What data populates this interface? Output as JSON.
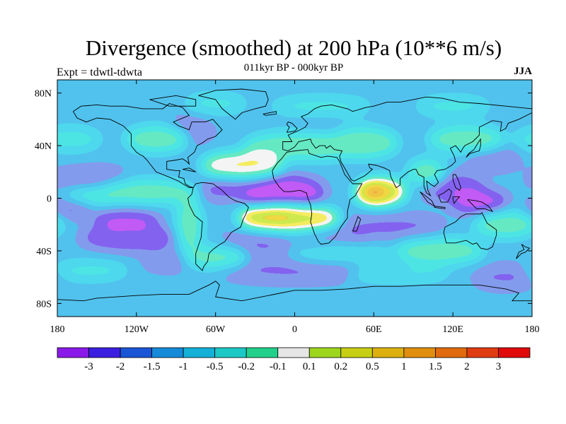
{
  "header": {
    "title": "Divergence (smoothed) at 200 hPa (10**6 m/s)",
    "subtitle": "011kyr BP - 000kyr BP",
    "experiment": "Expt = tdwtl-tdwta",
    "season": "JJA"
  },
  "map": {
    "projection": "cylindrical-equidistant",
    "lon_range": [
      -180,
      180
    ],
    "lat_range": [
      -90,
      90
    ],
    "lat_ticks": [
      {
        "value": 80,
        "label": "80N"
      },
      {
        "value": 40,
        "label": "40N"
      },
      {
        "value": 0,
        "label": "0"
      },
      {
        "value": -40,
        "label": "40S"
      },
      {
        "value": -80,
        "label": "80S"
      }
    ],
    "lon_ticks": [
      {
        "value": -180,
        "label": "180"
      },
      {
        "value": -120,
        "label": "120W"
      },
      {
        "value": -60,
        "label": "60W"
      },
      {
        "value": 0,
        "label": "0"
      },
      {
        "value": 60,
        "label": "60E"
      },
      {
        "value": 120,
        "label": "120E"
      },
      {
        "value": 180,
        "label": "180"
      }
    ]
  },
  "colorbar": {
    "colors": [
      "#8a1ae8",
      "#3b1fe0",
      "#1a55d6",
      "#168ad8",
      "#14b0d8",
      "#1cc8c6",
      "#22d08c",
      "#e6e6e6",
      "#9ed61e",
      "#c7cf14",
      "#dcb00e",
      "#e08e0e",
      "#e06a0e",
      "#e03c12",
      "#e00a0a"
    ],
    "labels": [
      "-3",
      "-2",
      "-1.5",
      "-1",
      "-0.5",
      "-0.2",
      "-0.1",
      "0.1",
      "0.2",
      "0.5",
      "1",
      "1.5",
      "2",
      "3"
    ]
  },
  "anomalies": [
    {
      "lon": -14,
      "lat": 2,
      "rx": 20,
      "ry": 8,
      "value": -3.5
    },
    {
      "lon": -10,
      "lat": 4,
      "rx": 33,
      "ry": 13,
      "value": -2.0
    },
    {
      "lon": -40,
      "lat": 18,
      "rx": 18,
      "ry": 9,
      "value": -0.8
    },
    {
      "lon": -50,
      "lat": 8,
      "rx": 14,
      "ry": 8,
      "value": -0.8
    },
    {
      "lon": -128,
      "lat": -16,
      "rx": 26,
      "ry": 6,
      "value": -1.5
    },
    {
      "lon": -170,
      "lat": -8,
      "rx": 16,
      "ry": 5,
      "value": -1.3
    },
    {
      "lon": -125,
      "lat": -30,
      "rx": 38,
      "ry": 10,
      "value": -0.9
    },
    {
      "lon": -90,
      "lat": 6,
      "rx": 34,
      "ry": 8,
      "value": -0.5
    },
    {
      "lon": -155,
      "lat": 15,
      "rx": 30,
      "ry": 8,
      "value": -0.3
    },
    {
      "lon": 120,
      "lat": 8,
      "rx": 25,
      "ry": 10,
      "value": -0.7
    },
    {
      "lon": 140,
      "lat": -3,
      "rx": 22,
      "ry": 8,
      "value": -2.2
    },
    {
      "lon": 112,
      "lat": 12,
      "rx": 8,
      "ry": 5,
      "value": -1.4
    },
    {
      "lon": 150,
      "lat": 30,
      "rx": 22,
      "ry": 8,
      "value": -0.4
    },
    {
      "lon": 75,
      "lat": -22,
      "rx": 40,
      "ry": 9,
      "value": -0.4
    },
    {
      "lon": 30,
      "lat": -33,
      "rx": 28,
      "ry": 7,
      "value": -0.3
    },
    {
      "lon": -30,
      "lat": -35,
      "rx": 30,
      "ry": 8,
      "value": -0.3
    },
    {
      "lon": 0,
      "lat": -55,
      "rx": 60,
      "ry": 8,
      "value": -0.2
    },
    {
      "lon": 160,
      "lat": -60,
      "rx": 25,
      "ry": 8,
      "value": -0.4
    },
    {
      "lon": -80,
      "lat": 52,
      "rx": 18,
      "ry": 10,
      "value": -0.2
    },
    {
      "lon": 20,
      "lat": 50,
      "rx": 25,
      "ry": 7,
      "value": -0.3
    },
    {
      "lon": -95,
      "lat": -48,
      "rx": 20,
      "ry": 6,
      "value": -0.2
    },
    {
      "lon": -40,
      "lat": 25,
      "rx": 32,
      "ry": 10,
      "value": 1.2
    },
    {
      "lon": -110,
      "lat": 5,
      "rx": 40,
      "ry": 9,
      "value": 0.6
    },
    {
      "lon": -145,
      "lat": 2,
      "rx": 30,
      "ry": 6,
      "value": 0.8
    },
    {
      "lon": -5,
      "lat": -15,
      "rx": 40,
      "ry": 9,
      "value": 1.8
    },
    {
      "lon": -20,
      "lat": -12,
      "rx": 20,
      "ry": 5,
      "value": 2.4
    },
    {
      "lon": 10,
      "lat": 40,
      "rx": 50,
      "ry": 11,
      "value": 1.0
    },
    {
      "lon": 50,
      "lat": 42,
      "rx": 30,
      "ry": 12,
      "value": 0.8
    },
    {
      "lon": 65,
      "lat": 5,
      "rx": 20,
      "ry": 10,
      "value": 1.7
    },
    {
      "lon": 60,
      "lat": 4,
      "rx": 10,
      "ry": 6,
      "value": 3.3
    },
    {
      "lon": 100,
      "lat": 20,
      "rx": 15,
      "ry": 10,
      "value": 1.0
    },
    {
      "lon": -105,
      "lat": 45,
      "rx": 25,
      "ry": 10,
      "value": 0.8
    },
    {
      "lon": 130,
      "lat": 45,
      "rx": 30,
      "ry": 10,
      "value": 0.8
    },
    {
      "lon": -170,
      "lat": 45,
      "rx": 25,
      "ry": 10,
      "value": 0.4
    },
    {
      "lon": -60,
      "lat": -45,
      "rx": 25,
      "ry": 8,
      "value": 0.8
    },
    {
      "lon": 35,
      "lat": -42,
      "rx": 40,
      "ry": 7,
      "value": 0.5
    },
    {
      "lon": 110,
      "lat": -40,
      "rx": 35,
      "ry": 10,
      "value": 0.9
    },
    {
      "lon": 160,
      "lat": -20,
      "rx": 25,
      "ry": 10,
      "value": 0.6
    },
    {
      "lon": -155,
      "lat": -55,
      "rx": 30,
      "ry": 8,
      "value": 0.4
    },
    {
      "lon": 80,
      "lat": -58,
      "rx": 40,
      "ry": 6,
      "value": 0.3
    },
    {
      "lon": -80,
      "lat": -20,
      "rx": 10,
      "ry": 20,
      "value": 1.0
    },
    {
      "lon": 20,
      "lat": 70,
      "rx": 40,
      "ry": 8,
      "value": 0.4
    },
    {
      "lon": -60,
      "lat": 72,
      "rx": 25,
      "ry": 8,
      "value": 0.3
    },
    {
      "lon": 120,
      "lat": 70,
      "rx": 30,
      "ry": 8,
      "value": 0.3
    }
  ]
}
